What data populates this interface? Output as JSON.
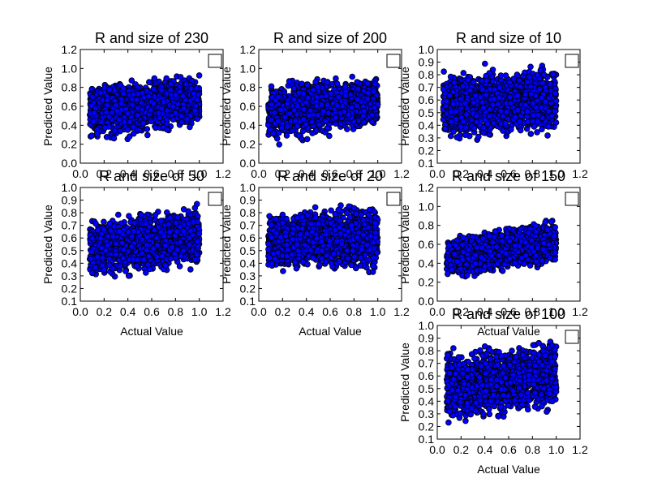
{
  "colors": {
    "point_fill": "#0000ff",
    "point_edge": "#000000",
    "frame": "#000000"
  },
  "chart_data": [
    {
      "type": "scatter",
      "title": "R and size of 230",
      "xlabel": "",
      "ylabel": "Predicted Value",
      "xlim": [
        0.0,
        1.2
      ],
      "ylim": [
        0.0,
        1.2
      ],
      "xticks": [
        "0.0",
        "0.2",
        "0.4",
        "0.6",
        "0.8",
        "1.0",
        "1.2"
      ],
      "yticks": [
        "0.0",
        "0.2",
        "0.4",
        "0.6",
        "0.8",
        "1.0",
        "1.2"
      ],
      "legend": "top-right (empty box)",
      "grid": false,
      "series": [
        {
          "x_range": [
            0.08,
            1.0
          ],
          "y_low_at_x_min": 0.16,
          "y_high_at_x_min": 0.93,
          "y_low_at_x_max": 0.35,
          "y_high_at_x_max": 0.97,
          "trend": "positive",
          "point_count_approx": 1500
        }
      ]
    },
    {
      "type": "scatter",
      "title": "R and size of 200",
      "xlabel": "",
      "ylabel": "Predicted Value",
      "xlim": [
        0.0,
        1.2
      ],
      "ylim": [
        0.0,
        1.2
      ],
      "xticks": [
        "0.0",
        "0.2",
        "0.4",
        "0.6",
        "0.8",
        "1.0",
        "1.2"
      ],
      "yticks": [
        "0.0",
        "0.2",
        "0.4",
        "0.6",
        "0.8",
        "1.0",
        "1.2"
      ],
      "legend": "top-right (empty box)",
      "grid": false,
      "series": [
        {
          "x_range": [
            0.08,
            1.0
          ],
          "y_low_at_x_min": 0.15,
          "y_high_at_x_min": 0.9,
          "y_low_at_x_max": 0.35,
          "y_high_at_x_max": 0.96,
          "trend": "positive",
          "point_count_approx": 1500
        }
      ]
    },
    {
      "type": "scatter",
      "title": "R and size of 10",
      "xlabel": "",
      "ylabel": "Predicted Value",
      "xlim": [
        0.0,
        1.2
      ],
      "ylim": [
        0.1,
        1.0
      ],
      "xticks": [
        "0.0",
        "0.2",
        "0.4",
        "0.6",
        "0.8",
        "1.0",
        "1.2"
      ],
      "yticks": [
        "0.1",
        "0.2",
        "0.3",
        "0.4",
        "0.5",
        "0.6",
        "0.7",
        "0.8",
        "0.9",
        "1.0"
      ],
      "legend": "top-right (empty box)",
      "grid": false,
      "series": [
        {
          "x_range": [
            0.05,
            1.0
          ],
          "y_low_at_x_min": 0.22,
          "y_high_at_x_min": 0.88,
          "y_low_at_x_max": 0.3,
          "y_high_at_x_max": 0.92,
          "trend": "weak positive",
          "point_count_approx": 1500
        }
      ]
    },
    {
      "type": "scatter",
      "title": "R and size of 50",
      "xlabel": "Actual Value",
      "ylabel": "Predicted Value",
      "xlim": [
        0.0,
        1.2
      ],
      "ylim": [
        0.1,
        1.0
      ],
      "xticks": [
        "0.0",
        "0.2",
        "0.4",
        "0.6",
        "0.8",
        "1.0",
        "1.2"
      ],
      "yticks": [
        "0.1",
        "0.2",
        "0.3",
        "0.4",
        "0.5",
        "0.6",
        "0.7",
        "0.8",
        "0.9",
        "1.0"
      ],
      "legend": "top-right (empty box)",
      "grid": false,
      "series": [
        {
          "x_range": [
            0.08,
            1.0
          ],
          "y_low_at_x_min": 0.24,
          "y_high_at_x_min": 0.78,
          "y_low_at_x_max": 0.32,
          "y_high_at_x_max": 0.9,
          "trend": "positive",
          "point_count_approx": 1500
        }
      ]
    },
    {
      "type": "scatter",
      "title": "R and size of 20",
      "xlabel": "Actual Value",
      "ylabel": "Predicted Value",
      "xlim": [
        0.0,
        1.2
      ],
      "ylim": [
        0.1,
        1.0
      ],
      "xticks": [
        "0.0",
        "0.2",
        "0.4",
        "0.6",
        "0.8",
        "1.0",
        "1.2"
      ],
      "yticks": [
        "0.1",
        "0.2",
        "0.3",
        "0.4",
        "0.5",
        "0.6",
        "0.7",
        "0.8",
        "0.9",
        "1.0"
      ],
      "legend": "top-right (empty box)",
      "grid": false,
      "series": [
        {
          "x_range": [
            0.08,
            1.0
          ],
          "y_low_at_x_min": 0.3,
          "y_high_at_x_min": 0.83,
          "y_low_at_x_max": 0.3,
          "y_high_at_x_max": 0.92,
          "trend": "weak positive",
          "point_count_approx": 1500
        }
      ]
    },
    {
      "type": "scatter",
      "title": "R and size of 150",
      "xlabel": "Actual Value",
      "ylabel": "Predicted Value",
      "xlim": [
        0.0,
        1.2
      ],
      "ylim": [
        0.0,
        1.2
      ],
      "xticks": [
        "0.0",
        "0.2",
        "0.4",
        "0.6",
        "0.8",
        "1.0",
        "1.2"
      ],
      "yticks": [
        "0.0",
        "0.2",
        "0.4",
        "0.6",
        "0.8",
        "1.0",
        "1.2"
      ],
      "legend": "top-right (empty box)",
      "grid": false,
      "series": [
        {
          "x_range": [
            0.08,
            1.0
          ],
          "y_low_at_x_min": 0.2,
          "y_high_at_x_min": 0.7,
          "y_low_at_x_max": 0.35,
          "y_high_at_x_max": 0.93,
          "trend": "positive",
          "point_count_approx": 1500
        }
      ]
    },
    {
      "type": "scatter",
      "title": "R and size of 100",
      "xlabel": "Actual Value",
      "ylabel": "Predicted Value",
      "xlim": [
        0.0,
        1.2
      ],
      "ylim": [
        0.1,
        1.0
      ],
      "xticks": [
        "0.0",
        "0.2",
        "0.4",
        "0.6",
        "0.8",
        "1.0",
        "1.2"
      ],
      "yticks": [
        "0.1",
        "0.2",
        "0.3",
        "0.4",
        "0.5",
        "0.6",
        "0.7",
        "0.8",
        "0.9",
        "1.0"
      ],
      "legend": "top-right (empty box)",
      "grid": false,
      "series": [
        {
          "x_range": [
            0.08,
            1.0
          ],
          "y_low_at_x_min": 0.16,
          "y_high_at_x_min": 0.84,
          "y_low_at_x_max": 0.3,
          "y_high_at_x_max": 0.92,
          "trend": "positive",
          "point_count_approx": 1500
        }
      ]
    }
  ]
}
